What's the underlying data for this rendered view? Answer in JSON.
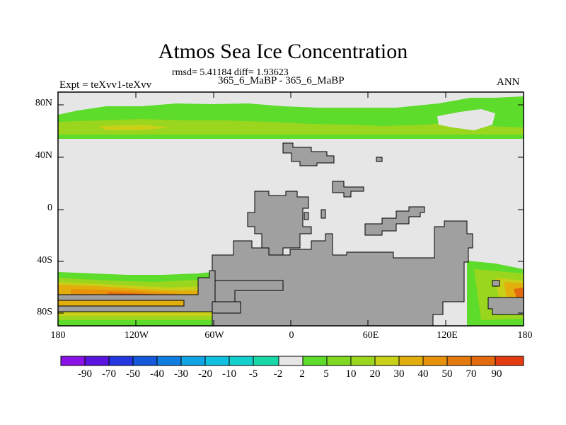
{
  "chart_data": {
    "type": "heatmap",
    "title": "Atmos Sea Ice Concentration",
    "stats_line": "rmsd= 5.41184 diff= 1.93623",
    "case_line": "365_6_MaBP - 365_6_MaBP",
    "left_label": "Expt = teXvv1-teXvv",
    "right_label": "ANN",
    "x_ticks": [
      "180",
      "120W",
      "60W",
      "0",
      "60E",
      "120E",
      "180"
    ],
    "y_ticks": [
      "80N",
      "40N",
      "0",
      "40S",
      "80S"
    ],
    "colorbar_labels": [
      "-90",
      "-70",
      "-50",
      "-40",
      "-30",
      "-20",
      "-10",
      "-5",
      "-2",
      "2",
      "5",
      "10",
      "20",
      "30",
      "40",
      "50",
      "70",
      "90"
    ],
    "colors": {
      "land": "#a0a0a0",
      "near_zero": "#e6e6e6",
      "c5": "#5ddc2c",
      "c10": "#9ad61e",
      "c20": "#c8d018",
      "c30": "#e2ae0e",
      "c40": "#e8920a",
      "c50": "#e46a10"
    }
  }
}
